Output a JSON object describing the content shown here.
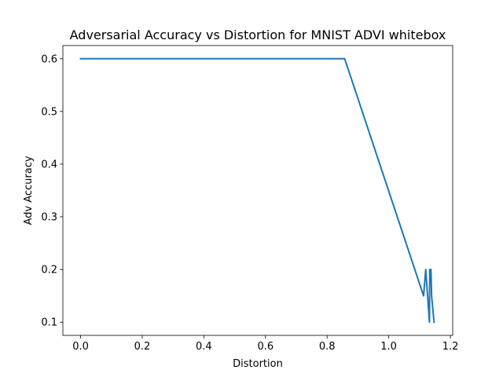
{
  "chart_data": {
    "type": "line",
    "title": "Adversarial Accuracy vs Distortion for MNIST ADVI whitebox",
    "xlabel": "Distortion",
    "ylabel": "Adv Accuracy",
    "xlim": [
      -0.0575,
      1.2075
    ],
    "ylim": [
      0.075,
      0.625
    ],
    "xticks": [
      0.0,
      0.2,
      0.4,
      0.6,
      0.8,
      1.0,
      1.2
    ],
    "xtick_labels": [
      "0.0",
      "0.2",
      "0.4",
      "0.6",
      "0.8",
      "1.0",
      "1.2"
    ],
    "yticks": [
      0.1,
      0.2,
      0.3,
      0.4,
      0.5,
      0.6
    ],
    "ytick_labels": [
      "0.1",
      "0.2",
      "0.3",
      "0.4",
      "0.5",
      "0.6"
    ],
    "grid": false,
    "series": [
      {
        "color": "#1f77b4",
        "x": [
          0.0,
          0.857,
          1.113,
          1.12,
          1.126,
          1.132,
          1.133,
          1.137,
          1.139,
          1.147
        ],
        "y": [
          0.6,
          0.6,
          0.15,
          0.2,
          0.15,
          0.1,
          0.2,
          0.2,
          0.15,
          0.1
        ]
      }
    ]
  }
}
